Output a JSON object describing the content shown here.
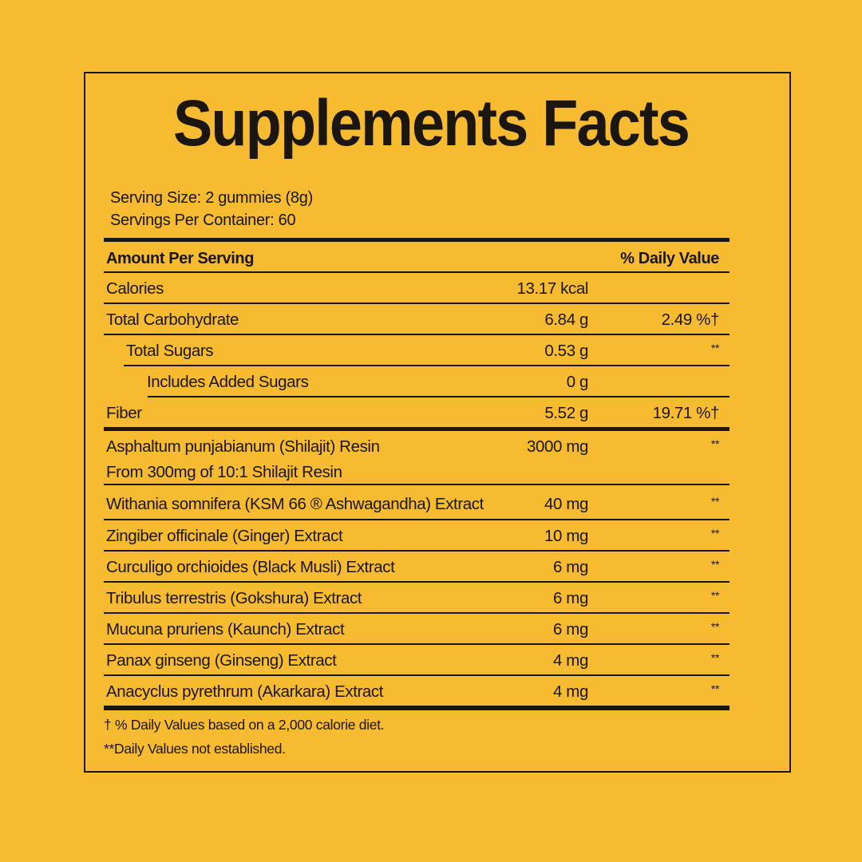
{
  "title": "Supplements Facts",
  "serving_size": "Serving Size: 2 gummies (8g)",
  "servings_per_container": "Servings Per Container: 60",
  "header": {
    "amount": "Amount Per Serving",
    "dv": "% Daily Value"
  },
  "nutrients": [
    {
      "name": "Calories",
      "amount": "13.17 kcal",
      "dv": ""
    },
    {
      "name": "Total Carbohydrate",
      "amount": "6.84 g",
      "dv": "2.49 %†"
    },
    {
      "name": "Total Sugars",
      "amount": "0.53 g",
      "dv": "**"
    },
    {
      "name": "Includes Added Sugars",
      "amount": "0 g",
      "dv": ""
    },
    {
      "name": "Fiber",
      "amount": "5.52 g",
      "dv": "19.71 %†"
    }
  ],
  "shilajit": {
    "name": "Asphaltum punjabianum  (Shilajit) Resin",
    "note": "From 300mg of 10:1 Shilajit Resin",
    "amount": "3000 mg",
    "dv": "**"
  },
  "extracts": [
    {
      "name": "Withania somnifera (KSM 66 ® Ashwagandha) Extract",
      "amount": "40 mg",
      "dv": "**"
    },
    {
      "name": "Zingiber officinale (Ginger) Extract",
      "amount": "10 mg",
      "dv": "**"
    },
    {
      "name": "Curculigo orchioides (Black Musli) Extract",
      "amount": "6 mg",
      "dv": "**"
    },
    {
      "name": "Tribulus terrestris (Gokshura) Extract",
      "amount": "6 mg",
      "dv": "**"
    },
    {
      "name": "Mucuna pruriens (Kaunch) Extract",
      "amount": "6 mg",
      "dv": "**"
    },
    {
      "name": "Panax ginseng (Ginseng) Extract",
      "amount": "4 mg",
      "dv": "**"
    },
    {
      "name": "Anacyclus pyrethrum (Akarkara) Extract",
      "amount": "4 mg",
      "dv": "**"
    }
  ],
  "footnotes": [
    "† % Daily Values based on a 2,000 calorie diet.",
    "**Daily Values not established."
  ],
  "colors": {
    "background": "#F6BB30",
    "text": "#1b1610"
  }
}
